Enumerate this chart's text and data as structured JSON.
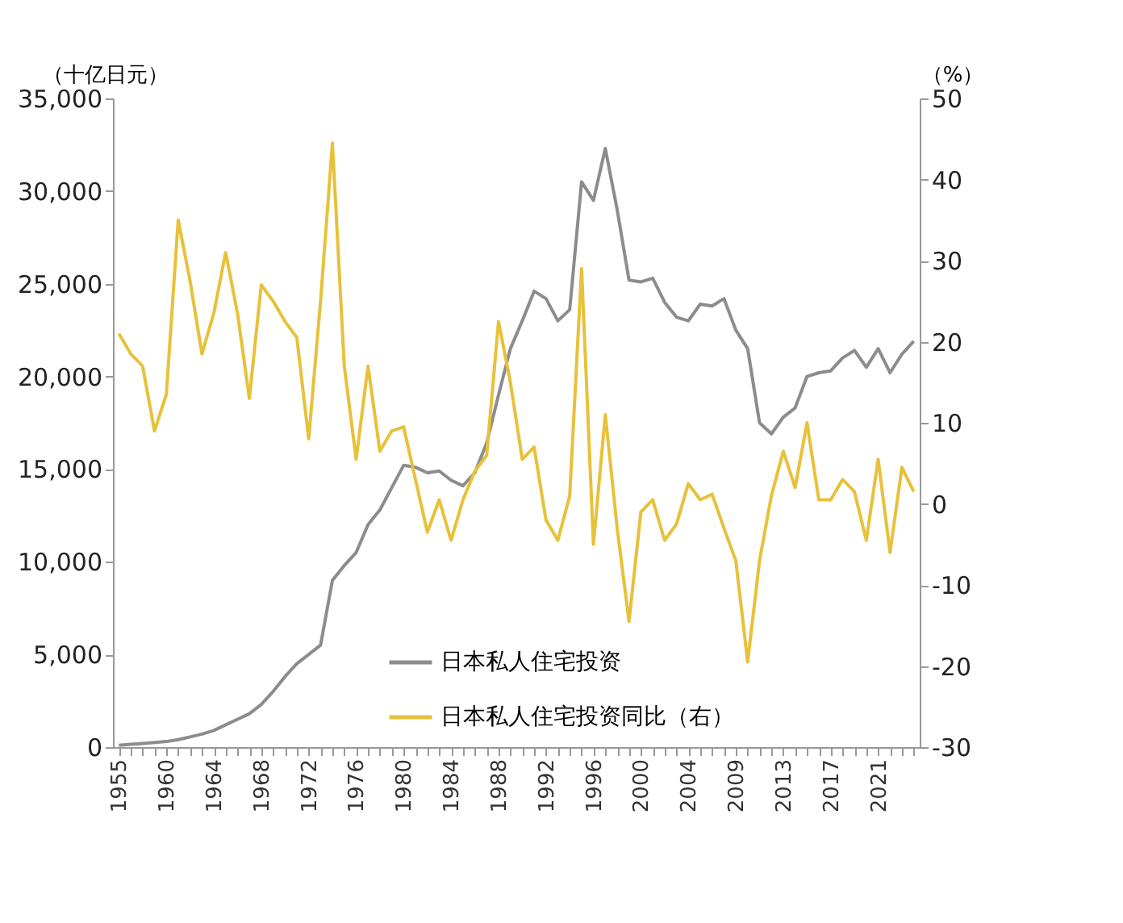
{
  "chart_data": {
    "type": "line",
    "ylabel": "（十亿日元）",
    "y2label": "（%）",
    "categories": [
      "1955",
      null,
      null,
      null,
      "1960",
      null,
      null,
      null,
      "1964",
      null,
      null,
      null,
      "1968",
      null,
      null,
      null,
      "1972",
      null,
      null,
      null,
      "1976",
      null,
      null,
      null,
      "1980",
      null,
      null,
      null,
      "1984",
      null,
      null,
      null,
      "1988",
      null,
      null,
      null,
      "1992",
      null,
      null,
      null,
      "1996",
      null,
      null,
      null,
      "2000",
      null,
      null,
      null,
      "2004",
      null,
      null,
      null,
      "2009",
      null,
      null,
      null,
      "2013",
      null,
      null,
      null,
      "2017",
      null,
      null,
      null,
      "2021",
      null,
      null,
      null
    ],
    "ylim": [
      0,
      35000
    ],
    "yticks": [
      {
        "value": 0,
        "label": "0"
      },
      {
        "value": 5000,
        "label": "5,000"
      },
      {
        "value": 10000,
        "label": "10,000"
      },
      {
        "value": 15000,
        "label": "15,000"
      },
      {
        "value": 20000,
        "label": "20,000"
      },
      {
        "value": 25000,
        "label": "25,000"
      },
      {
        "value": 30000,
        "label": "30,000"
      },
      {
        "value": 35000,
        "label": "35,000"
      }
    ],
    "y2lim": [
      -30,
      50
    ],
    "y2ticks": [
      -30,
      -20,
      -10,
      0,
      10,
      20,
      30,
      40,
      50
    ],
    "series": [
      {
        "name": "日本私人住宅投资",
        "color": "#8c8c8c",
        "values": [
          100,
          150,
          200,
          250,
          300,
          400,
          550,
          700,
          900,
          1200,
          1500,
          1800,
          2300,
          3000,
          3800,
          4500,
          5000,
          5500,
          9000,
          9800,
          10500,
          12000,
          12800,
          14000,
          15200,
          15100,
          14800,
          14900,
          14400,
          14100,
          14800,
          16400,
          19000,
          21500,
          23000,
          24600,
          24200,
          23000,
          23600,
          30500,
          29500,
          32300,
          29000,
          25200,
          25100,
          25300,
          24000,
          23200,
          23000,
          23900,
          23800,
          24200,
          22500,
          21500,
          17500,
          16900,
          17800,
          18300,
          20000,
          20200,
          20300,
          21000,
          21400,
          20500,
          21500,
          20200,
          21200,
          21900
        ]
      },
      {
        "name": "日本私人住宅投资同比（右）",
        "color": "#e8c13a",
        "axis": "y2",
        "values": [
          21,
          18.5,
          17,
          9,
          13.5,
          35,
          27.5,
          18.5,
          23.5,
          31,
          23.5,
          13,
          27,
          25,
          22.5,
          20.5,
          8,
          25,
          44.5,
          17,
          5.5,
          17,
          6.5,
          9,
          9.5,
          3,
          -3.5,
          0.5,
          -4.5,
          0.5,
          4,
          6,
          22.5,
          15,
          5.5,
          7,
          -2,
          -4.5,
          1,
          29,
          -5,
          11,
          -3,
          -14.5,
          -1,
          0.5,
          -4.5,
          -2.5,
          2.5,
          0.5,
          1.2,
          -3,
          -7,
          -19.5,
          -7,
          1,
          6.5,
          2,
          10,
          0.5,
          0.5,
          3,
          1.5,
          -4.5,
          5.5,
          -6,
          4.5,
          1.5
        ]
      }
    ],
    "grid": false,
    "legend": "bottom",
    "marker": "none",
    "line_style": "solid"
  }
}
